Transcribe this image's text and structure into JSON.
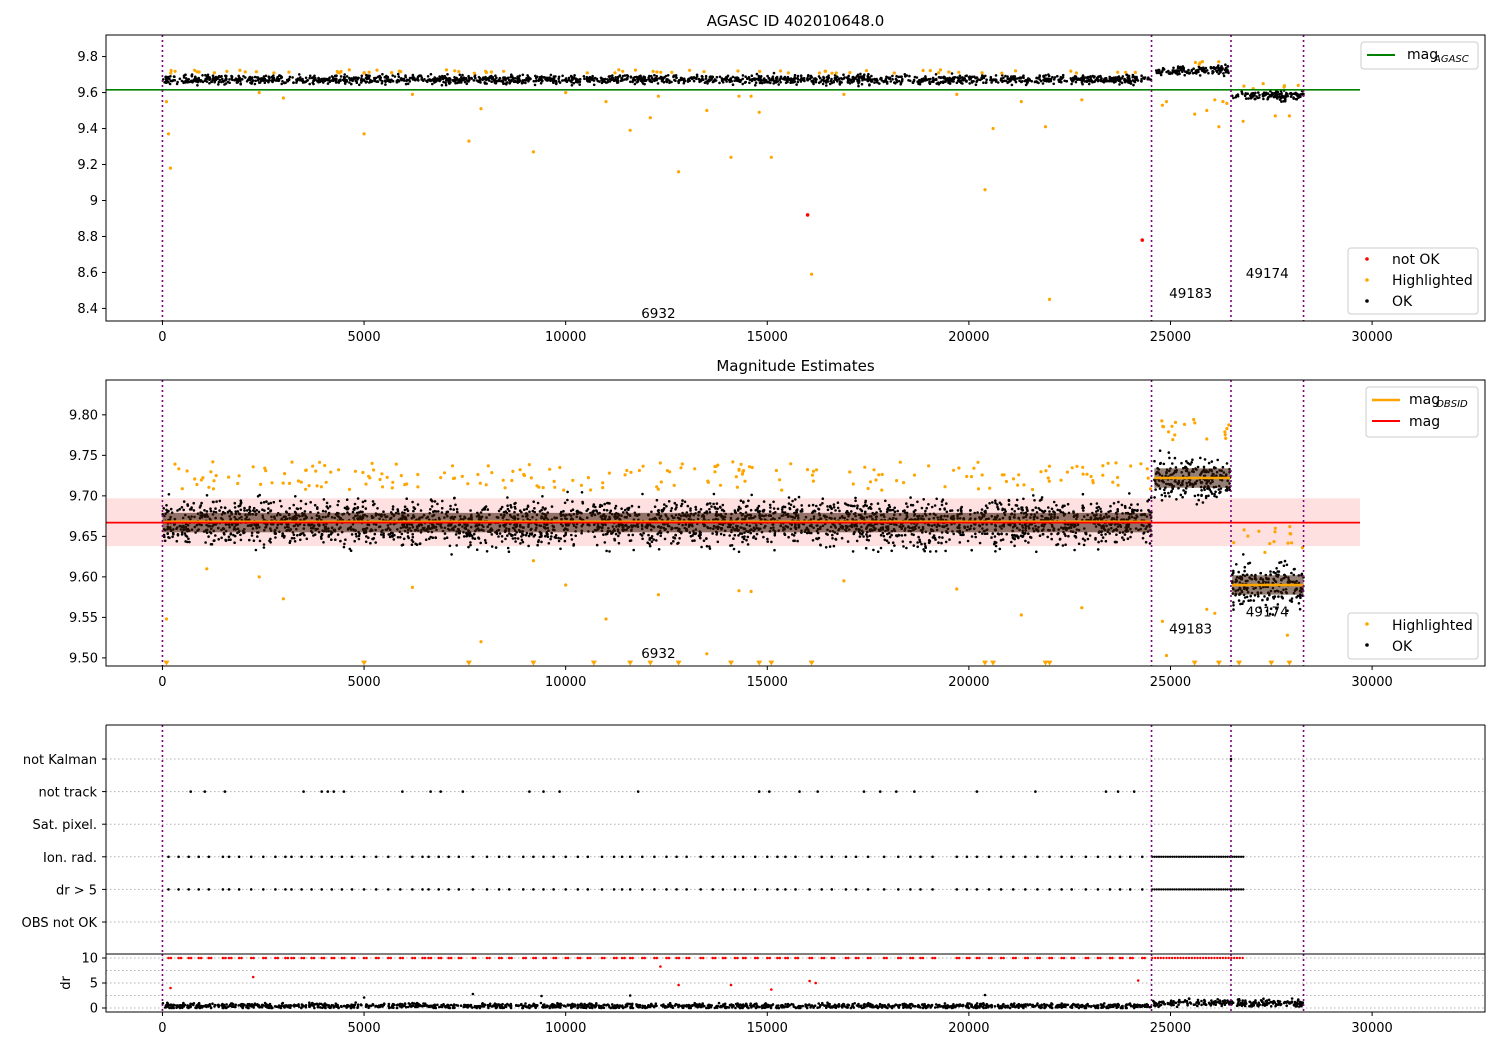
{
  "chart_data": [
    {
      "type": "scatter",
      "title": "AGASC ID 402010648.0",
      "xlabel": "",
      "ylabel": "",
      "xlim": [
        -1400,
        32800
      ],
      "ylim": [
        8.33,
        9.92
      ],
      "x_ticks": [
        0,
        5000,
        10000,
        15000,
        20000,
        25000,
        30000
      ],
      "y_ticks": [
        8.4,
        8.6,
        8.8,
        9.0,
        9.2,
        9.4,
        9.6,
        9.8
      ],
      "grid": false,
      "legend_upper": {
        "position": "top-right",
        "entries": [
          {
            "label": "mag",
            "subscript": "AGASC",
            "color": "#008000"
          }
        ]
      },
      "legend_lower": {
        "position": "bottom-right",
        "entries": [
          {
            "label": "not OK",
            "color": "#ff0000"
          },
          {
            "label": "Highlighted",
            "color": "#ffa500"
          },
          {
            "label": "OK",
            "color": "#000000"
          }
        ]
      },
      "vlines": [
        0,
        24530,
        26500,
        28300
      ],
      "annotations": [
        {
          "text": "6932",
          "x": 12300,
          "y": 8.37
        },
        {
          "text": "49183",
          "x": 25500,
          "y": 8.48
        },
        {
          "text": "49174",
          "x": 27400,
          "y": 8.59
        }
      ],
      "hline": {
        "name": "mag_AGASC",
        "value": 9.615,
        "x_range": [
          -1400,
          29700
        ],
        "color": "#008000"
      },
      "segments": [
        {
          "obsid": "6932",
          "x_range": [
            0,
            24530
          ],
          "ok_center": 9.672,
          "ok_spread": 0.012
        },
        {
          "obsid": "49183",
          "x_range": [
            24600,
            26480
          ],
          "ok_center": 9.72,
          "ok_spread": 0.012
        },
        {
          "obsid": "49174",
          "x_range": [
            26530,
            28300
          ],
          "ok_center": 9.585,
          "ok_spread": 0.012
        }
      ],
      "series": [
        {
          "name": "not OK",
          "color": "#ff0000",
          "points": [
            [
              16000,
              8.92
            ],
            [
              24300,
              8.78
            ]
          ]
        },
        {
          "name": "Highlighted",
          "color": "#ffa500",
          "points": [
            [
              100,
              9.55
            ],
            [
              150,
              9.37
            ],
            [
              200,
              9.18
            ],
            [
              2400,
              9.6
            ],
            [
              3000,
              9.57
            ],
            [
              5000,
              9.37
            ],
            [
              6200,
              9.59
            ],
            [
              7600,
              9.33
            ],
            [
              7900,
              9.51
            ],
            [
              9200,
              9.27
            ],
            [
              10000,
              9.6
            ],
            [
              11000,
              9.55
            ],
            [
              11600,
              9.39
            ],
            [
              12100,
              9.46
            ],
            [
              12300,
              9.58
            ],
            [
              12800,
              9.16
            ],
            [
              13500,
              9.5
            ],
            [
              14100,
              9.24
            ],
            [
              14300,
              9.58
            ],
            [
              14600,
              9.58
            ],
            [
              14800,
              9.49
            ],
            [
              15100,
              9.24
            ],
            [
              16100,
              8.59
            ],
            [
              16900,
              9.59
            ],
            [
              19700,
              9.59
            ],
            [
              20400,
              9.06
            ],
            [
              20600,
              9.4
            ],
            [
              21300,
              9.55
            ],
            [
              21900,
              9.41
            ],
            [
              22000,
              8.45
            ],
            [
              22800,
              9.56
            ],
            [
              24800,
              9.53
            ],
            [
              24900,
              9.55
            ],
            [
              25600,
              9.48
            ],
            [
              25900,
              9.5
            ],
            [
              26100,
              9.56
            ],
            [
              26200,
              9.41
            ],
            [
              26300,
              9.55
            ],
            [
              26400,
              9.54
            ],
            [
              26800,
              9.44
            ],
            [
              27300,
              9.65
            ],
            [
              27600,
              9.47
            ],
            [
              27950,
              9.47
            ]
          ]
        }
      ]
    },
    {
      "type": "scatter",
      "title": "Magnitude Estimates",
      "xlabel": "",
      "ylabel": "",
      "xlim": [
        -1400,
        32800
      ],
      "ylim": [
        9.49,
        9.843
      ],
      "x_ticks": [
        0,
        5000,
        10000,
        15000,
        20000,
        25000,
        30000
      ],
      "y_ticks": [
        9.5,
        9.55,
        9.6,
        9.65,
        9.7,
        9.75,
        9.8
      ],
      "y_tick_labels": [
        "9.50",
        "9.55",
        "9.60",
        "9.65",
        "9.70",
        "9.75",
        "9.80"
      ],
      "grid": false,
      "legend_upper": {
        "position": "top-right",
        "entries": [
          {
            "label": "mag",
            "subscript": "OBSID",
            "color": "#ffa500"
          },
          {
            "label": "mag",
            "subscript": "",
            "color": "#ff0000"
          }
        ]
      },
      "legend_lower": {
        "position": "bottom-right",
        "entries": [
          {
            "label": "Highlighted",
            "color": "#ffa500"
          },
          {
            "label": "OK",
            "color": "#000000"
          }
        ]
      },
      "vlines": [
        0,
        24530,
        26500,
        28300
      ],
      "annotations": [
        {
          "text": "6932",
          "x": 12300,
          "y": 9.505
        },
        {
          "text": "49183",
          "x": 25500,
          "y": 9.535
        },
        {
          "text": "49174",
          "x": 27400,
          "y": 9.556
        }
      ],
      "mag_line": {
        "value": 9.667,
        "band": [
          9.638,
          9.697
        ],
        "x_range": [
          -1400,
          29700
        ],
        "color": "#ff0000"
      },
      "obsid_mags": [
        {
          "obsid": "6932",
          "x_range": [
            0,
            24530
          ],
          "value": 9.668
        },
        {
          "obsid": "49183",
          "x_range": [
            24600,
            26480
          ],
          "value": 9.722
        },
        {
          "obsid": "49174",
          "x_range": [
            26530,
            28300
          ],
          "value": 9.59
        }
      ],
      "segments": [
        {
          "obsid": "6932",
          "x_range": [
            0,
            24530
          ],
          "ok_center": 9.667,
          "ok_spread": 0.013
        },
        {
          "obsid": "49183",
          "x_range": [
            24600,
            26480
          ],
          "ok_center": 9.722,
          "ok_spread": 0.013
        },
        {
          "obsid": "49174",
          "x_range": [
            26530,
            28300
          ],
          "ok_center": 9.59,
          "ok_spread": 0.013
        }
      ],
      "series": [
        {
          "name": "Highlighted",
          "color": "#ffa500",
          "points": [
            [
              100,
              9.548
            ],
            [
              1100,
              9.61
            ],
            [
              2400,
              9.6
            ],
            [
              3000,
              9.573
            ],
            [
              6200,
              9.587
            ],
            [
              7900,
              9.52
            ],
            [
              9200,
              9.62
            ],
            [
              10000,
              9.59
            ],
            [
              11000,
              9.548
            ],
            [
              12300,
              9.578
            ],
            [
              13500,
              9.505
            ],
            [
              14300,
              9.583
            ],
            [
              14600,
              9.582
            ],
            [
              16900,
              9.595
            ],
            [
              19700,
              9.585
            ],
            [
              21300,
              9.553
            ],
            [
              22800,
              9.562
            ],
            [
              24800,
              9.545
            ],
            [
              24900,
              9.503
            ],
            [
              25900,
              9.56
            ],
            [
              26100,
              9.555
            ],
            [
              26350,
              9.779
            ],
            [
              26400,
              9.783
            ],
            [
              27600,
              9.66
            ],
            [
              27900,
              9.528
            ]
          ]
        },
        {
          "name": "below-range",
          "color": "#ffa500",
          "points": [
            [
              100,
              9.493
            ],
            [
              5000,
              9.493
            ],
            [
              7600,
              9.493
            ],
            [
              9200,
              9.493
            ],
            [
              10700,
              9.493
            ],
            [
              11600,
              9.493
            ],
            [
              12100,
              9.493
            ],
            [
              12800,
              9.493
            ],
            [
              14100,
              9.493
            ],
            [
              14800,
              9.493
            ],
            [
              15100,
              9.493
            ],
            [
              16100,
              9.493
            ],
            [
              20400,
              9.493
            ],
            [
              20600,
              9.493
            ],
            [
              21900,
              9.493
            ],
            [
              22000,
              9.493
            ],
            [
              25600,
              9.493
            ],
            [
              26200,
              9.493
            ],
            [
              26700,
              9.493
            ],
            [
              27500,
              9.493
            ],
            [
              27950,
              9.493
            ]
          ]
        }
      ]
    },
    {
      "type": "scatter",
      "title": "",
      "xlabel": "",
      "ylabel": "",
      "xlim": [
        -1400,
        32800
      ],
      "categories": [
        "not Kalman",
        "not track",
        "Sat. pixel.",
        "Ion. rad.",
        "dr > 5",
        "OBS not OK"
      ],
      "grid": true,
      "vlines": [
        0,
        24530,
        26500,
        28300
      ],
      "series": [
        {
          "name": "not Kalman",
          "color": "#000000",
          "x": [
            26500
          ]
        },
        {
          "name": "not track",
          "color": "#000000",
          "x": [
            700,
            1050,
            1550,
            3500,
            3950,
            4100,
            4250,
            4500,
            5950,
            6650,
            6900,
            7450,
            9100,
            9450,
            9850,
            11800,
            14800,
            15050,
            15800,
            16250,
            17400,
            17800,
            18200,
            18650,
            20200,
            21650,
            23400,
            23700,
            24100
          ]
        },
        {
          "name": "Sat. pixel.",
          "color": "#000000",
          "x": []
        },
        {
          "name": "Ion. rad.",
          "color": "#000000",
          "x": [
            150,
            400,
            650,
            900,
            1150,
            1500,
            1650,
            1900,
            2200,
            2500,
            2800,
            3050,
            3200,
            3450,
            3700,
            3950,
            4200,
            4450,
            4700,
            5000,
            5300,
            5600,
            5900,
            6200,
            6450,
            6600,
            6850,
            7100,
            7350,
            7700,
            8050,
            8350,
            8600,
            8950,
            9200,
            9450,
            9700,
            10000,
            10300,
            10550,
            10900,
            11200,
            11400,
            11600,
            11900,
            12200,
            12500,
            12750,
            13000,
            13350,
            13650,
            13900,
            14200,
            14400,
            14700,
            15000,
            15250,
            15450,
            15700,
            16050,
            16350,
            16600,
            16950,
            17200,
            17500,
            17900,
            18250,
            18550,
            18800,
            19100,
            19700,
            19950,
            20200,
            20500,
            20800,
            21100,
            21400,
            21700,
            22000,
            22300,
            22550,
            22900,
            23200,
            23500,
            23750,
            24000,
            24300
          ]
        },
        {
          "name": "dr > 5",
          "color": "#000000",
          "x": [
            150,
            400,
            650,
            900,
            1150,
            1500,
            1650,
            1900,
            2200,
            2500,
            2800,
            3050,
            3200,
            3450,
            3700,
            3950,
            4200,
            4450,
            4700,
            5000,
            5300,
            5600,
            5900,
            6200,
            6450,
            6600,
            6850,
            7100,
            7350,
            7700,
            8050,
            8350,
            8600,
            8950,
            9200,
            9450,
            9700,
            10000,
            10300,
            10550,
            10900,
            11200,
            11400,
            11600,
            11900,
            12200,
            12500,
            12750,
            13000,
            13350,
            13650,
            13900,
            14200,
            14400,
            14700,
            15000,
            15250,
            15450,
            15700,
            16050,
            16350,
            16600,
            16950,
            17200,
            17500,
            17900,
            18250,
            18550,
            18800,
            19100,
            19700,
            19950,
            20200,
            20500,
            20800,
            21100,
            21400,
            21700,
            22000,
            22300,
            22550,
            22900,
            23200,
            23500,
            23750,
            24000,
            24300
          ]
        },
        {
          "name": "OBS not OK",
          "color": "#000000",
          "x": []
        }
      ],
      "band_ranges": [
        {
          "series": [
            "Ion. rad.",
            "dr > 5"
          ],
          "x_range": [
            24550,
            26850
          ]
        }
      ]
    },
    {
      "type": "scatter",
      "title": "",
      "xlabel": "",
      "ylabel": "dr",
      "xlim": [
        -1400,
        32800
      ],
      "ylim": [
        -0.8,
        10.8
      ],
      "x_ticks": [
        0,
        5000,
        10000,
        15000,
        20000,
        25000,
        30000
      ],
      "y_ticks": [
        0,
        5,
        10
      ],
      "grid": true,
      "vlines": [
        0,
        24530,
        26500,
        28300
      ],
      "segments": [
        {
          "x_range": [
            0,
            24530
          ],
          "center": 0.4,
          "spread": 0.25
        },
        {
          "x_range": [
            24550,
            28300
          ],
          "center": 1.0,
          "spread": 0.35
        }
      ],
      "series": [
        {
          "name": "dr > 5",
          "color": "#ff0000",
          "y": 10,
          "x_ref": "dr > 5"
        },
        {
          "name": "outliers",
          "color": "#ff0000",
          "points": [
            [
              200,
              4.0
            ],
            [
              2250,
              6.2
            ],
            [
              12350,
              8.3
            ],
            [
              12800,
              4.6
            ],
            [
              14100,
              4.6
            ],
            [
              15100,
              3.7
            ],
            [
              16050,
              5.4
            ],
            [
              16200,
              5.0
            ],
            [
              24200,
              5.5
            ]
          ]
        },
        {
          "name": "black-outliers",
          "color": "#000000",
          "points": [
            [
              5000,
              2.1
            ],
            [
              7700,
              2.8
            ],
            [
              9400,
              2.4
            ],
            [
              11600,
              2.5
            ],
            [
              20400,
              2.6
            ]
          ]
        }
      ]
    }
  ]
}
